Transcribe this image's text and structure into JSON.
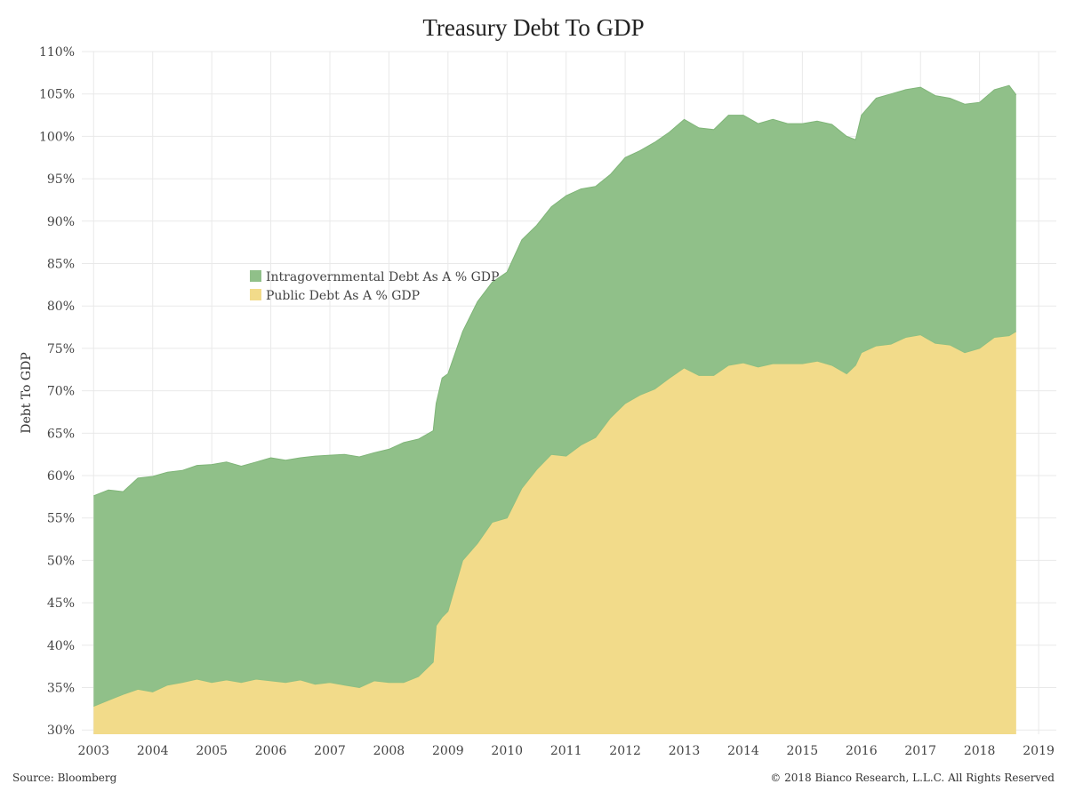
{
  "footer": {
    "source": "Source: Bloomberg",
    "copyright": "© 2018 Bianco Research, L.L.C. All Rights Reserved"
  },
  "chart_data": {
    "type": "area",
    "stacked": true,
    "title": "Treasury Debt To GDP",
    "xlabel": "",
    "ylabel": "Debt To GDP",
    "xlim": [
      2002.8,
      2019.3
    ],
    "ylim": [
      29.5,
      110
    ],
    "x_ticks": [
      "2003",
      "2004",
      "2005",
      "2006",
      "2007",
      "2008",
      "2009",
      "2010",
      "2011",
      "2012",
      "2013",
      "2014",
      "2015",
      "2016",
      "2017",
      "2018",
      "2019"
    ],
    "y_ticks": [
      "30%",
      "35%",
      "40%",
      "45%",
      "50%",
      "55%",
      "60%",
      "65%",
      "70%",
      "75%",
      "80%",
      "85%",
      "90%",
      "95%",
      "100%",
      "105%",
      "110%"
    ],
    "grid": true,
    "legend_position": "center-left",
    "colors": {
      "intragovernmental": "#90c089",
      "public": "#f2db8a",
      "grid": "#e9e9e9"
    },
    "x": [
      2003.0,
      2003.25,
      2003.5,
      2003.75,
      2004.0,
      2004.25,
      2004.5,
      2004.75,
      2005.0,
      2005.25,
      2005.5,
      2005.75,
      2006.0,
      2006.25,
      2006.5,
      2006.75,
      2007.0,
      2007.25,
      2007.5,
      2007.75,
      2008.0,
      2008.25,
      2008.5,
      2008.75,
      2008.8,
      2008.9,
      2009.0,
      2009.25,
      2009.5,
      2009.75,
      2010.0,
      2010.25,
      2010.5,
      2010.75,
      2011.0,
      2011.25,
      2011.5,
      2011.75,
      2012.0,
      2012.25,
      2012.5,
      2012.75,
      2013.0,
      2013.25,
      2013.5,
      2013.75,
      2014.0,
      2014.25,
      2014.5,
      2014.75,
      2015.0,
      2015.25,
      2015.5,
      2015.75,
      2015.9,
      2016.0,
      2016.25,
      2016.5,
      2016.75,
      2017.0,
      2017.25,
      2017.5,
      2017.75,
      2018.0,
      2018.25,
      2018.5,
      2018.62
    ],
    "series": [
      {
        "name": "Intragovernmental Debt As A % GDP",
        "total_values": [
          57.6,
          58.3,
          58.1,
          59.7,
          59.9,
          60.4,
          60.6,
          61.2,
          61.3,
          61.6,
          61.1,
          61.6,
          62.1,
          61.8,
          62.1,
          62.3,
          62.4,
          62.5,
          62.2,
          62.7,
          63.1,
          63.9,
          64.3,
          65.3,
          68.5,
          71.5,
          72.0,
          77.0,
          80.5,
          82.8,
          84.0,
          87.8,
          89.5,
          91.7,
          93.0,
          93.8,
          94.1,
          95.5,
          97.5,
          98.3,
          99.3,
          100.5,
          102.0,
          101.0,
          100.8,
          102.5,
          102.5,
          101.5,
          102.0,
          101.5,
          101.5,
          101.8,
          101.4,
          100.0,
          99.6,
          102.5,
          104.5,
          105.0,
          105.5,
          105.8,
          104.8,
          104.5,
          103.8,
          104.0,
          105.5,
          106.0,
          104.9
        ]
      },
      {
        "name": "Public Debt As A % GDP",
        "values": [
          32.8,
          33.5,
          34.2,
          34.8,
          34.5,
          35.3,
          35.6,
          36.0,
          35.6,
          35.9,
          35.6,
          36.0,
          35.8,
          35.6,
          35.9,
          35.4,
          35.6,
          35.3,
          35.0,
          35.8,
          35.6,
          35.6,
          36.3,
          38.0,
          42.3,
          43.3,
          44.0,
          50.0,
          52.0,
          54.5,
          55.0,
          58.5,
          60.7,
          62.5,
          62.3,
          63.6,
          64.5,
          66.8,
          68.5,
          69.5,
          70.2,
          71.5,
          72.7,
          71.8,
          71.8,
          73.0,
          73.3,
          72.8,
          73.2,
          73.2,
          73.2,
          73.5,
          73.0,
          72.0,
          73.0,
          74.5,
          75.3,
          75.5,
          76.3,
          76.6,
          75.6,
          75.4,
          74.5,
          75.0,
          76.3,
          76.5,
          77.0
        ]
      }
    ]
  }
}
